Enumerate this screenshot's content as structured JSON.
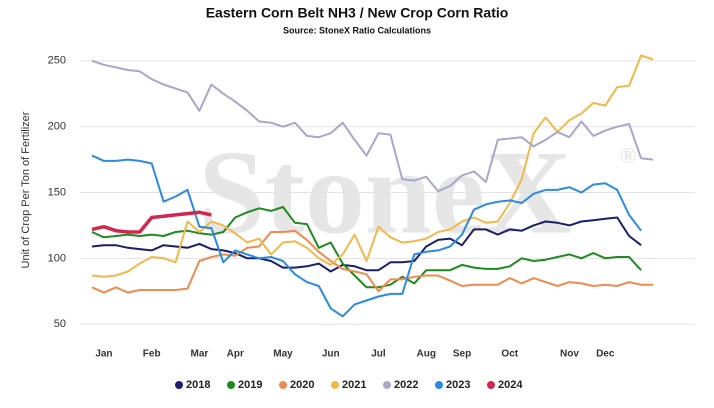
{
  "chart_data": {
    "type": "line",
    "title": "Eastern Corn Belt NH3 / New Crop Corn Ratio",
    "subtitle": "Source: StoneX Ratio Calculations",
    "y_label": "Unit of Crop Per Ton of Fertilizer",
    "watermark": "StoneX",
    "watermark_mark": "®",
    "categories": [
      null,
      "Jan",
      null,
      null,
      null,
      "Feb",
      null,
      null,
      null,
      "Mar",
      null,
      null,
      "Apr",
      null,
      null,
      null,
      "May",
      null,
      null,
      null,
      "Jun",
      null,
      null,
      null,
      "Jul",
      null,
      null,
      null,
      "Aug",
      null,
      null,
      "Sep",
      null,
      null,
      null,
      "Oct",
      null,
      null,
      null,
      null,
      "Nov",
      null,
      null,
      "Dec",
      null,
      null,
      null,
      null
    ],
    "ylim": [
      38,
      262
    ],
    "yticks": [
      50,
      100,
      150,
      200,
      250
    ],
    "grid": true,
    "legend": "bottom",
    "series": [
      {
        "name": "2018",
        "color": "#1a1f6b",
        "values": [
          109,
          110,
          110,
          108,
          107,
          106,
          110,
          109,
          108,
          111,
          107,
          106,
          104,
          100,
          100,
          98,
          93,
          93,
          94,
          96,
          90,
          95,
          94,
          91,
          91,
          97,
          97,
          98,
          109,
          114,
          115,
          110,
          122,
          122,
          118,
          122,
          121,
          125,
          128,
          127,
          125,
          128,
          129,
          130,
          131,
          117,
          110,
          null
        ]
      },
      {
        "name": "2019",
        "color": "#1f8a1f",
        "values": [
          120,
          116,
          117,
          118,
          117,
          118,
          117,
          120,
          121,
          119,
          118,
          120,
          131,
          135,
          138,
          136,
          139,
          127,
          126,
          108,
          112,
          96,
          87,
          78,
          78,
          80,
          86,
          81,
          91,
          91,
          91,
          95,
          93,
          92,
          92,
          94,
          100,
          98,
          99,
          101,
          103,
          100,
          104,
          100,
          101,
          101,
          91,
          null
        ]
      },
      {
        "name": "2020",
        "color": "#f08a50",
        "values": [
          78,
          74,
          78,
          74,
          76,
          76,
          76,
          76,
          77,
          98,
          101,
          103,
          102,
          108,
          109,
          120,
          120,
          121,
          114,
          105,
          98,
          92,
          90,
          88,
          75,
          84,
          84,
          86,
          87,
          87,
          83,
          79,
          80,
          80,
          80,
          85,
          81,
          85,
          82,
          79,
          82,
          81,
          79,
          80,
          79,
          82,
          80,
          80
        ]
      },
      {
        "name": "2021",
        "color": "#f2b84b",
        "values": [
          87,
          86,
          87,
          90,
          96,
          101,
          100,
          97,
          128,
          120,
          128,
          125,
          119,
          112,
          115,
          103,
          112,
          113,
          108,
          100,
          95,
          103,
          118,
          98,
          124,
          116,
          112,
          113,
          115,
          120,
          122,
          128,
          131,
          127,
          128,
          142,
          160,
          195,
          207,
          196,
          205,
          210,
          218,
          216,
          230,
          231,
          254,
          251
        ]
      },
      {
        "name": "2022",
        "color": "#a8a8c8",
        "values": [
          250,
          247,
          245,
          243,
          242,
          236,
          232,
          229,
          226,
          212,
          232,
          225,
          219,
          212,
          204,
          203,
          200,
          203,
          193,
          192,
          195,
          203,
          190,
          178,
          195,
          194,
          160,
          159,
          162,
          151,
          155,
          163,
          166,
          158,
          190,
          191,
          192,
          185,
          190,
          196,
          192,
          204,
          193,
          197,
          200,
          202,
          176,
          175
        ]
      },
      {
        "name": "2023",
        "color": "#2b8be0",
        "values": [
          178,
          174,
          174,
          175,
          174,
          172,
          143,
          147,
          152,
          124,
          123,
          97,
          106,
          103,
          100,
          101,
          98,
          88,
          82,
          79,
          62,
          56,
          65,
          68,
          71,
          73,
          73,
          103,
          105,
          106,
          109,
          118,
          137,
          141,
          143,
          144,
          142,
          149,
          152,
          152,
          154,
          150,
          156,
          157,
          152,
          133,
          121,
          null
        ]
      },
      {
        "name": "2024",
        "color": "#d0284e",
        "width": 3.5,
        "values": [
          122,
          124,
          121,
          120,
          120,
          131,
          132,
          133,
          134,
          135,
          133,
          null,
          null,
          null,
          null,
          null,
          null,
          null,
          null,
          null,
          null,
          null,
          null,
          null,
          null,
          null,
          null,
          null,
          null,
          null,
          null,
          null,
          null,
          null,
          null,
          null,
          null,
          null,
          null,
          null,
          null,
          null,
          null,
          null,
          null,
          null,
          null,
          null
        ]
      }
    ]
  }
}
